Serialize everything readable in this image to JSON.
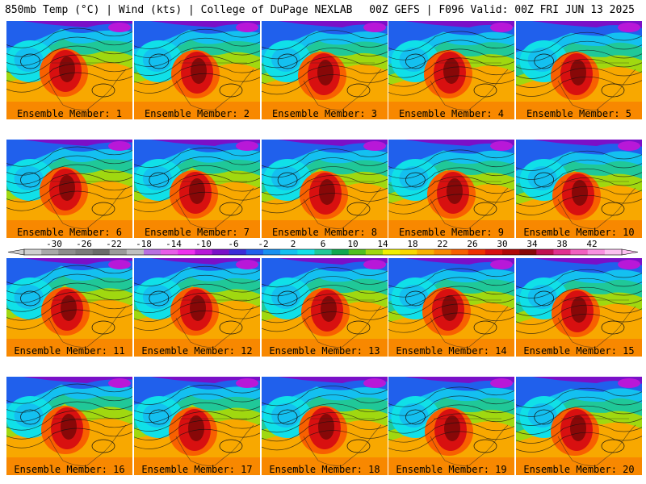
{
  "header": {
    "left": "850mb Temp (°C) | Wind (kts) | College of DuPage NEXLAB",
    "right": "00Z GEFS | F096 Valid: 00Z FRI JUN 13 2025"
  },
  "members": [
    {
      "label": "Ensemble Member: 1",
      "hot_core": [
        97,
        80
      ]
    },
    {
      "label": "Ensemble Member: 2",
      "hot_core": [
        102,
        82
      ]
    },
    {
      "label": "Ensemble Member: 3",
      "hot_core": [
        101,
        84
      ]
    },
    {
      "label": "Ensemble Member: 4",
      "hot_core": [
        100,
        82
      ]
    },
    {
      "label": "Ensemble Member: 5",
      "hot_core": [
        99,
        84
      ]
    },
    {
      "label": "Ensemble Member: 6",
      "hot_core": [
        97,
        80
      ]
    },
    {
      "label": "Ensemble Member: 7",
      "hot_core": [
        100,
        84
      ]
    },
    {
      "label": "Ensemble Member: 8",
      "hot_core": [
        103,
        85
      ]
    },
    {
      "label": "Ensemble Member: 9",
      "hot_core": [
        104,
        84
      ]
    },
    {
      "label": "Ensemble Member: 10",
      "hot_core": [
        101,
        86
      ]
    },
    {
      "label": "Ensemble Member: 11",
      "hot_core": [
        99,
        82
      ]
    },
    {
      "label": "Ensemble Member: 12",
      "hot_core": [
        101,
        82
      ]
    },
    {
      "label": "Ensemble Member: 13",
      "hot_core": [
        105,
        83
      ]
    },
    {
      "label": "Ensemble Member: 14",
      "hot_core": [
        98,
        82
      ]
    },
    {
      "label": "Ensemble Member: 15",
      "hot_core": [
        100,
        84
      ]
    },
    {
      "label": "Ensemble Member: 16",
      "hot_core": [
        99,
        82
      ]
    },
    {
      "label": "Ensemble Member: 17",
      "hot_core": [
        99,
        84
      ]
    },
    {
      "label": "Ensemble Member: 18",
      "hot_core": [
        102,
        82
      ]
    },
    {
      "label": "Ensemble Member: 19",
      "hot_core": [
        101,
        84
      ]
    },
    {
      "label": "Ensemble Member: 20",
      "hot_core": [
        99,
        84
      ]
    }
  ],
  "colorbar": {
    "ticks": [
      "-30",
      "-26",
      "-22",
      "-18",
      "-14",
      "-10",
      "-6",
      "-2",
      "2",
      "6",
      "10",
      "14",
      "18",
      "22",
      "26",
      "30",
      "34",
      "38",
      "42"
    ],
    "colors": [
      "#cfcfcf",
      "#a8a8a8",
      "#8c8c8c",
      "#7a7a7a",
      "#6a6a6a",
      "#9a9a9a",
      "#c0c0c0",
      "#b870e0",
      "#e85ce8",
      "#ee30ee",
      "#b818d8",
      "#7a10c8",
      "#3c2cd8",
      "#2060ec",
      "#1890f0",
      "#14c0f0",
      "#10e0e8",
      "#20c898",
      "#10a850",
      "#50c020",
      "#a0d810",
      "#f0f000",
      "#f8d800",
      "#f8b000",
      "#f88800",
      "#f86000",
      "#f03000",
      "#d81010",
      "#b00808",
      "#880808",
      "#c01050",
      "#e03090",
      "#f060c0",
      "#f890e0",
      "#fcc0f0"
    ]
  },
  "chart_data": {
    "type": "heatmap",
    "title": "850mb Temp (°C) | Wind (kts)",
    "subtitle": "00Z GEFS | F096 Valid: 00Z FRI JUN 13 2025",
    "panels": [
      "Ensemble Member: 1",
      "Ensemble Member: 2",
      "Ensemble Member: 3",
      "Ensemble Member: 4",
      "Ensemble Member: 5",
      "Ensemble Member: 6",
      "Ensemble Member: 7",
      "Ensemble Member: 8",
      "Ensemble Member: 9",
      "Ensemble Member: 10",
      "Ensemble Member: 11",
      "Ensemble Member: 12",
      "Ensemble Member: 13",
      "Ensemble Member: 14",
      "Ensemble Member: 15",
      "Ensemble Member: 16",
      "Ensemble Member: 17",
      "Ensemble Member: 18",
      "Ensemble Member: 19",
      "Ensemble Member: 20"
    ],
    "colorbar_ticks": [
      -30,
      -26,
      -22,
      -18,
      -14,
      -10,
      -6,
      -2,
      2,
      6,
      10,
      14,
      18,
      22,
      26,
      30,
      34,
      38,
      42
    ],
    "colorbar_range": [
      -34,
      46
    ]
  }
}
